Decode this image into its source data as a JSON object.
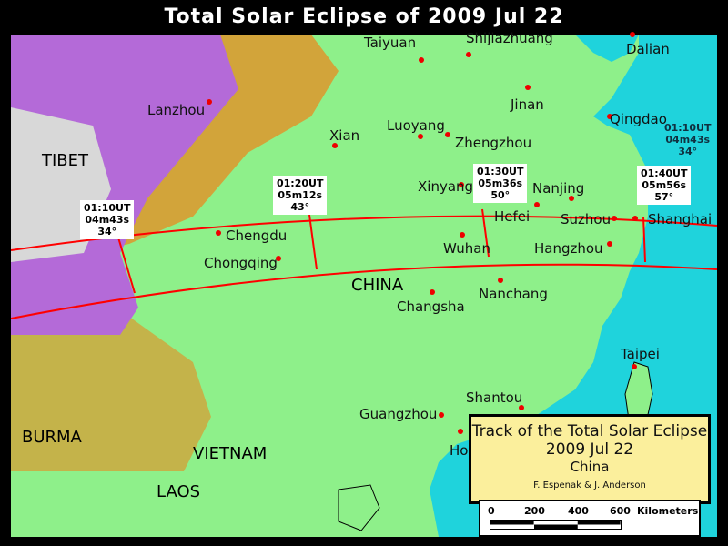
{
  "title": "Total Solar Eclipse of 2009 Jul 22",
  "colors": {
    "ocean": "#1fd3dc",
    "lowland": "#8ef08a",
    "highland": "#d2a43a",
    "mountain": "#b46ad8",
    "snow": "#d8d8d8",
    "track": "#ff0000",
    "city_dot": "#e00000",
    "legend_bg": "#fbef9c"
  },
  "countries": [
    "TIBET",
    "CHINA",
    "BURMA",
    "VIETNAM",
    "LAOS"
  ],
  "cities": [
    "Dalian",
    "Taiyuan",
    "Shijiazhuang",
    "Lanzhou",
    "Jinan",
    "Qingdao",
    "Xian",
    "Luoyang",
    "Zhengzhou",
    "Xinyang",
    "Nanjing",
    "Hefei",
    "Suzhou",
    "Shanghai",
    "Chengdu",
    "Chongqing",
    "Wuhan",
    "Hangzhou",
    "Changsha",
    "Nanchang",
    "Taipei",
    "Shantou",
    "Guangzhou",
    "Ho"
  ],
  "track_labels": [
    {
      "time": "01:10UT",
      "duration": "04m43s",
      "altitude": "34°"
    },
    {
      "time": "01:20UT",
      "duration": "05m12s",
      "altitude": "43°"
    },
    {
      "time": "01:30UT",
      "duration": "05m36s",
      "altitude": "50°"
    },
    {
      "time": "01:40UT",
      "duration": "05m56s",
      "altitude": "57°"
    },
    {
      "time": "01:10UT",
      "duration": "04m43s",
      "altitude": "34°"
    }
  ],
  "legend": {
    "line1": "Track of the Total Solar Eclipse",
    "line2": "2009 Jul 22",
    "line3": "China",
    "credit": "F. Espenak & J. Anderson"
  },
  "scale": {
    "ticks": [
      "0",
      "200",
      "400",
      "600"
    ],
    "unit": "Kilometers"
  }
}
